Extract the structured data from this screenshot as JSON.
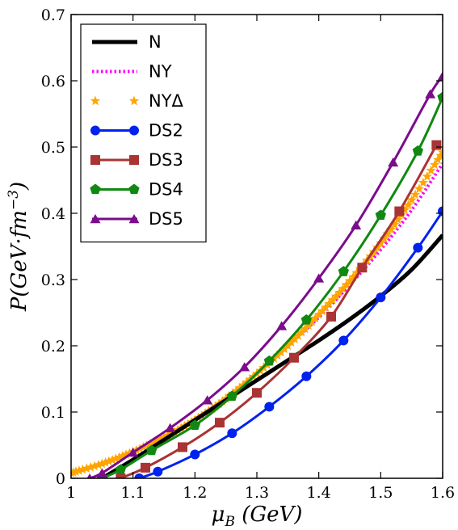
{
  "chart_data": {
    "type": "line",
    "title": "",
    "xlabel": "μ_B (GeV)",
    "ylabel": "P(GeV·fm^-3)",
    "xlim": [
      1.0,
      1.6
    ],
    "ylim": [
      0.0,
      0.7
    ],
    "xticks": [
      "1",
      "1.1",
      "1.2",
      "1.3",
      "1.4",
      "1.5",
      "1.6"
    ],
    "yticks": [
      "0",
      "0.1",
      "0.2",
      "0.3",
      "0.4",
      "0.5",
      "0.6",
      "0.7"
    ],
    "grid": false,
    "legend_position": "top-left",
    "series": [
      {
        "name": "N",
        "color": "#000000",
        "style": "solid",
        "marker": "none",
        "x": [
          1.05,
          1.1,
          1.15,
          1.2,
          1.25,
          1.3,
          1.35,
          1.4,
          1.45,
          1.5,
          1.55,
          1.6
        ],
        "y": [
          0.0,
          0.028,
          0.058,
          0.088,
          0.118,
          0.148,
          0.178,
          0.208,
          0.24,
          0.275,
          0.315,
          0.367
        ]
      },
      {
        "name": "NY",
        "color": "#ff00ff",
        "style": "dotted",
        "marker": "none",
        "x": [
          1.0,
          1.05,
          1.1,
          1.15,
          1.2,
          1.25,
          1.3,
          1.35,
          1.4,
          1.45,
          1.5,
          1.55,
          1.6
        ],
        "y": [
          0.008,
          0.022,
          0.04,
          0.062,
          0.089,
          0.122,
          0.16,
          0.2,
          0.243,
          0.292,
          0.345,
          0.405,
          0.475
        ]
      },
      {
        "name": "NYΔ",
        "color": "#ffa500",
        "style": "none",
        "marker": "star",
        "x": [
          1.0,
          1.05,
          1.1,
          1.15,
          1.2,
          1.25,
          1.3,
          1.35,
          1.4,
          1.45,
          1.5,
          1.55,
          1.6
        ],
        "y": [
          0.008,
          0.022,
          0.04,
          0.062,
          0.088,
          0.12,
          0.158,
          0.2,
          0.247,
          0.298,
          0.355,
          0.42,
          0.492
        ]
      },
      {
        "name": "DS2",
        "color": "#0022ee",
        "style": "solid",
        "marker": "circle",
        "x": [
          1.11,
          1.14,
          1.2,
          1.26,
          1.32,
          1.38,
          1.44,
          1.5,
          1.56,
          1.6
        ],
        "y": [
          0.0,
          0.01,
          0.036,
          0.068,
          0.108,
          0.154,
          0.208,
          0.273,
          0.348,
          0.403
        ]
      },
      {
        "name": "DS3",
        "color": "#aa3333",
        "style": "solid",
        "marker": "square",
        "x": [
          1.08,
          1.12,
          1.18,
          1.24,
          1.3,
          1.36,
          1.42,
          1.47,
          1.53,
          1.59
        ],
        "y": [
          0.0,
          0.016,
          0.047,
          0.084,
          0.129,
          0.182,
          0.244,
          0.318,
          0.403,
          0.503
        ]
      },
      {
        "name": "DS4",
        "color": "#118811",
        "style": "solid",
        "marker": "pentagon",
        "x": [
          1.05,
          1.08,
          1.13,
          1.2,
          1.26,
          1.32,
          1.38,
          1.44,
          1.5,
          1.56,
          1.6
        ],
        "y": [
          0.0,
          0.013,
          0.042,
          0.08,
          0.124,
          0.177,
          0.239,
          0.312,
          0.397,
          0.494,
          0.575
        ]
      },
      {
        "name": "DS5",
        "color": "#7b0c8c",
        "style": "solid",
        "marker": "triangle",
        "x": [
          1.03,
          1.05,
          1.1,
          1.16,
          1.22,
          1.28,
          1.34,
          1.4,
          1.46,
          1.52,
          1.58,
          1.6
        ],
        "y": [
          0.0,
          0.008,
          0.039,
          0.076,
          0.118,
          0.168,
          0.23,
          0.302,
          0.382,
          0.477,
          0.58,
          0.607
        ]
      }
    ]
  }
}
